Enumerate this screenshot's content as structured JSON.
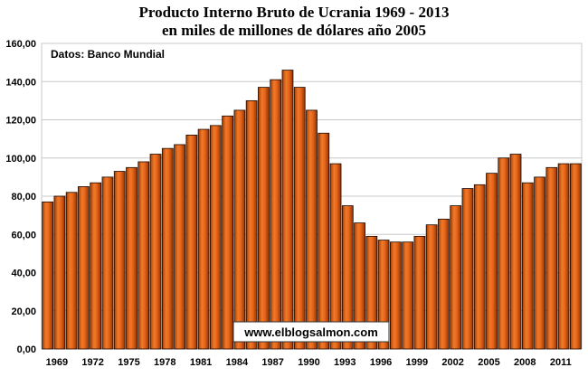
{
  "chart_data": {
    "type": "bar",
    "title_line1": "Producto Interno Bruto de Ucrania 1969 - 2013",
    "title_line2": "en miles de millones de dólares año 2005",
    "xlabel": "",
    "ylabel": "",
    "source_label": "Datos: Banco Mundial",
    "watermark": "www.elblogsalmon.com",
    "ylim": [
      0,
      160
    ],
    "y_ticks": [
      "0,00",
      "20,00",
      "40,00",
      "60,00",
      "80,00",
      "100,00",
      "120,00",
      "140,00",
      "160,00"
    ],
    "x_tick_labels": [
      "1969",
      "1972",
      "1975",
      "1978",
      "1981",
      "1984",
      "1987",
      "1990",
      "1993",
      "1996",
      "1999",
      "2002",
      "2005",
      "2008",
      "2011"
    ],
    "categories": [
      "1969",
      "1970",
      "1971",
      "1972",
      "1973",
      "1974",
      "1975",
      "1976",
      "1977",
      "1978",
      "1979",
      "1980",
      "1981",
      "1982",
      "1983",
      "1984",
      "1985",
      "1986",
      "1987",
      "1988",
      "1989",
      "1990",
      "1991",
      "1992",
      "1993",
      "1994",
      "1995",
      "1996",
      "1997",
      "1998",
      "1999",
      "2000",
      "2001",
      "2002",
      "2003",
      "2004",
      "2005",
      "2006",
      "2007",
      "2008",
      "2009",
      "2010",
      "2011",
      "2012",
      "2013"
    ],
    "values": [
      77,
      80,
      82,
      85,
      87,
      90,
      93,
      95,
      98,
      102,
      105,
      107,
      112,
      115,
      117,
      122,
      125,
      130,
      137,
      141,
      146,
      137,
      125,
      113,
      97,
      75,
      66,
      59,
      57,
      56,
      56,
      59,
      65,
      68,
      75,
      84,
      86,
      92,
      100,
      102,
      87,
      90,
      95,
      97,
      97
    ],
    "grid": true,
    "bar_color": "#E8661A",
    "bar_edge_color": "#1a0800",
    "frame_color": "#c9c9c9",
    "gridline_color": "#c8c8c8"
  }
}
